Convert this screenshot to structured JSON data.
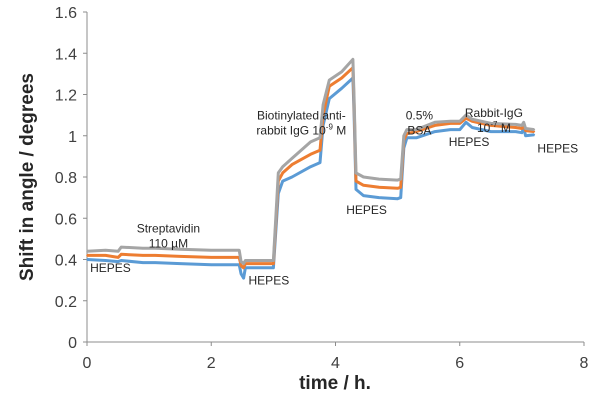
{
  "chart_data": {
    "type": "line",
    "title": "",
    "xlabel": "time / h.",
    "ylabel": "Shift in angle / degrees",
    "xlim": [
      0,
      8
    ],
    "ylim": [
      0,
      1.6
    ],
    "x_ticks": [
      "0",
      "2",
      "4",
      "6",
      "8"
    ],
    "y_ticks": [
      "0",
      "0.2",
      "0.4",
      "0.6",
      "0.8",
      "1",
      "1.2",
      "1.4",
      "1.6"
    ],
    "grid": false,
    "legend": "none",
    "series": [
      {
        "color": "#5B9BD5",
        "points": [
          [
            0,
            0.4
          ],
          [
            0.3,
            0.395
          ],
          [
            0.5,
            0.39
          ],
          [
            0.55,
            0.395
          ],
          [
            0.9,
            0.385
          ],
          [
            1.1,
            0.385
          ],
          [
            1.5,
            0.38
          ],
          [
            2.0,
            0.375
          ],
          [
            2.45,
            0.375
          ],
          [
            2.48,
            0.33
          ],
          [
            2.52,
            0.31
          ],
          [
            2.55,
            0.36
          ],
          [
            3.0,
            0.36
          ],
          [
            3.08,
            0.72
          ],
          [
            3.15,
            0.78
          ],
          [
            3.3,
            0.8
          ],
          [
            3.6,
            0.85
          ],
          [
            3.75,
            0.87
          ],
          [
            3.8,
            1.05
          ],
          [
            3.9,
            1.18
          ],
          [
            4.1,
            1.23
          ],
          [
            4.28,
            1.28
          ],
          [
            4.3,
            1.1
          ],
          [
            4.33,
            0.74
          ],
          [
            4.45,
            0.71
          ],
          [
            4.7,
            0.7
          ],
          [
            5.0,
            0.695
          ],
          [
            5.05,
            0.7
          ],
          [
            5.1,
            0.94
          ],
          [
            5.15,
            0.99
          ],
          [
            5.3,
            0.99
          ],
          [
            5.6,
            1.02
          ],
          [
            5.85,
            1.03
          ],
          [
            6.0,
            1.03
          ],
          [
            6.1,
            1.065
          ],
          [
            6.2,
            1.04
          ],
          [
            6.5,
            1.02
          ],
          [
            6.9,
            1.02
          ],
          [
            7.0,
            1.015
          ],
          [
            7.03,
            1.04
          ],
          [
            7.06,
            1.0
          ],
          [
            7.2,
            1.005
          ]
        ]
      },
      {
        "color": "#ED7D31",
        "points": [
          [
            0,
            0.42
          ],
          [
            0.3,
            0.42
          ],
          [
            0.5,
            0.41
          ],
          [
            0.55,
            0.425
          ],
          [
            0.9,
            0.42
          ],
          [
            1.1,
            0.42
          ],
          [
            1.5,
            0.415
          ],
          [
            2.0,
            0.41
          ],
          [
            2.45,
            0.41
          ],
          [
            2.48,
            0.37
          ],
          [
            2.52,
            0.36
          ],
          [
            2.55,
            0.38
          ],
          [
            3.0,
            0.38
          ],
          [
            3.08,
            0.78
          ],
          [
            3.15,
            0.82
          ],
          [
            3.3,
            0.86
          ],
          [
            3.6,
            0.91
          ],
          [
            3.75,
            0.93
          ],
          [
            3.8,
            1.1
          ],
          [
            3.9,
            1.24
          ],
          [
            4.1,
            1.28
          ],
          [
            4.28,
            1.33
          ],
          [
            4.3,
            1.15
          ],
          [
            4.33,
            0.78
          ],
          [
            4.45,
            0.76
          ],
          [
            4.7,
            0.75
          ],
          [
            5.0,
            0.745
          ],
          [
            5.05,
            0.75
          ],
          [
            5.1,
            0.98
          ],
          [
            5.15,
            1.01
          ],
          [
            5.3,
            1.02
          ],
          [
            5.6,
            1.05
          ],
          [
            5.85,
            1.06
          ],
          [
            6.0,
            1.06
          ],
          [
            6.1,
            1.085
          ],
          [
            6.2,
            1.07
          ],
          [
            6.5,
            1.05
          ],
          [
            6.9,
            1.04
          ],
          [
            7.0,
            1.035
          ],
          [
            7.03,
            1.055
          ],
          [
            7.06,
            1.025
          ],
          [
            7.2,
            1.02
          ]
        ]
      },
      {
        "color": "#A5A5A5",
        "points": [
          [
            0,
            0.44
          ],
          [
            0.3,
            0.445
          ],
          [
            0.5,
            0.44
          ],
          [
            0.55,
            0.46
          ],
          [
            0.9,
            0.455
          ],
          [
            1.1,
            0.455
          ],
          [
            1.5,
            0.45
          ],
          [
            2.0,
            0.445
          ],
          [
            2.45,
            0.445
          ],
          [
            2.48,
            0.39
          ],
          [
            2.52,
            0.38
          ],
          [
            2.55,
            0.395
          ],
          [
            3.0,
            0.395
          ],
          [
            3.08,
            0.82
          ],
          [
            3.15,
            0.85
          ],
          [
            3.3,
            0.89
          ],
          [
            3.6,
            0.97
          ],
          [
            3.75,
            0.99
          ],
          [
            3.8,
            1.15
          ],
          [
            3.9,
            1.27
          ],
          [
            4.1,
            1.31
          ],
          [
            4.28,
            1.37
          ],
          [
            4.3,
            1.18
          ],
          [
            4.33,
            0.82
          ],
          [
            4.45,
            0.8
          ],
          [
            4.7,
            0.79
          ],
          [
            5.0,
            0.785
          ],
          [
            5.05,
            0.79
          ],
          [
            5.1,
            1.0
          ],
          [
            5.15,
            1.03
          ],
          [
            5.3,
            1.03
          ],
          [
            5.6,
            1.065
          ],
          [
            5.85,
            1.07
          ],
          [
            6.0,
            1.07
          ],
          [
            6.1,
            1.1
          ],
          [
            6.2,
            1.08
          ],
          [
            6.5,
            1.06
          ],
          [
            6.9,
            1.055
          ],
          [
            7.0,
            1.05
          ],
          [
            7.03,
            1.065
          ],
          [
            7.06,
            1.035
          ],
          [
            7.2,
            1.03
          ]
        ]
      }
    ],
    "annotations": [
      {
        "lines": [
          "HEPES"
        ],
        "x": 0.05,
        "y": 0.34,
        "anchor": "start"
      },
      {
        "lines": [
          "Streptavidin",
          "110 µM"
        ],
        "x": 1.31,
        "y": 0.53,
        "anchor": "middle"
      },
      {
        "lines": [
          "HEPES"
        ],
        "x": 2.6,
        "y": 0.28,
        "anchor": "start"
      },
      {
        "lines": [
          "Biotinylated anti-",
          "rabbit IgG 10",
          "M"
        ],
        "sup": "-9",
        "x": 3.45,
        "y": 1.08,
        "anchor": "middle"
      },
      {
        "lines": [
          "HEPES"
        ],
        "x": 4.5,
        "y": 0.62,
        "anchor": "middle"
      },
      {
        "lines": [
          "0.5%",
          "BSA"
        ],
        "x": 5.35,
        "y": 1.08,
        "anchor": "middle"
      },
      {
        "lines": [
          "HEPES"
        ],
        "x": 6.15,
        "y": 0.95,
        "anchor": "middle"
      },
      {
        "lines": [
          "Rabbit-IgG",
          "10",
          "M"
        ],
        "sup": "-7",
        "x": 6.55,
        "y": 1.09,
        "anchor": "middle"
      },
      {
        "lines": [
          "HEPES"
        ],
        "x": 7.25,
        "y": 0.92,
        "anchor": "start"
      }
    ]
  }
}
